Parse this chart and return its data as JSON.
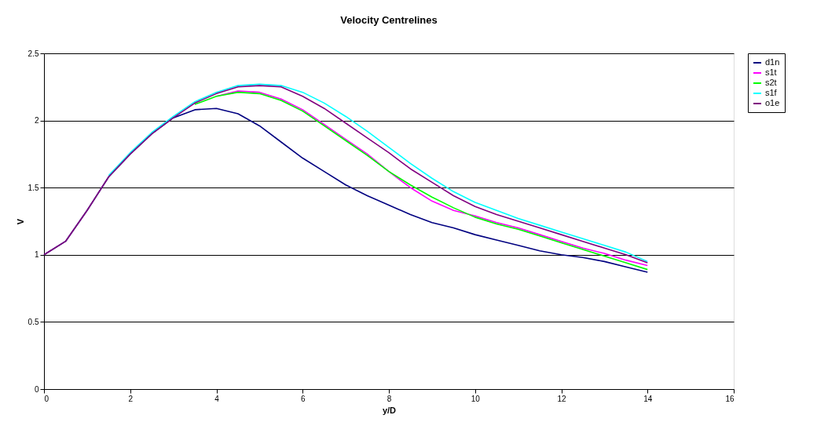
{
  "chart_data": {
    "type": "line",
    "title": "Velocity Centrelines",
    "xlabel": "y/D",
    "ylabel": "V",
    "x": [
      0,
      0.5,
      1,
      1.5,
      2,
      2.5,
      3,
      3.5,
      4,
      4.5,
      5,
      5.5,
      6,
      6.5,
      7,
      7.5,
      8,
      8.5,
      9,
      9.5,
      10,
      10.5,
      11,
      11.5,
      12,
      12.5,
      13,
      13.5,
      14
    ],
    "series": [
      {
        "name": "d1n",
        "color": "#000080",
        "values": [
          1.0,
          1.1,
          1.33,
          1.58,
          1.75,
          1.9,
          2.02,
          2.08,
          2.09,
          2.05,
          1.96,
          1.84,
          1.72,
          1.62,
          1.52,
          1.44,
          1.37,
          1.3,
          1.24,
          1.2,
          1.15,
          1.11,
          1.07,
          1.03,
          1.0,
          0.98,
          0.95,
          0.91,
          0.87
        ]
      },
      {
        "name": "s1t",
        "color": "#ff00ff",
        "values": [
          null,
          null,
          null,
          null,
          null,
          null,
          null,
          null,
          2.18,
          2.22,
          2.21,
          2.16,
          2.08,
          1.97,
          1.86,
          1.75,
          1.62,
          1.5,
          1.4,
          1.33,
          1.29,
          1.24,
          1.2,
          1.15,
          1.1,
          1.05,
          1.01,
          0.96,
          0.92
        ]
      },
      {
        "name": "s2t",
        "color": "#00ff00",
        "values": [
          null,
          null,
          null,
          null,
          null,
          null,
          null,
          2.12,
          2.18,
          2.21,
          2.2,
          2.15,
          2.07,
          1.96,
          1.85,
          1.74,
          1.62,
          1.52,
          1.43,
          1.35,
          1.28,
          1.23,
          1.19,
          1.14,
          1.09,
          1.04,
          0.99,
          0.94,
          0.89
        ]
      },
      {
        "name": "s1f",
        "color": "#00ffff",
        "values": [
          null,
          null,
          null,
          1.59,
          1.76,
          1.91,
          2.03,
          2.14,
          2.21,
          2.26,
          2.27,
          2.26,
          2.21,
          2.13,
          2.03,
          1.92,
          1.8,
          1.68,
          1.57,
          1.47,
          1.39,
          1.33,
          1.27,
          1.22,
          1.17,
          1.12,
          1.07,
          1.02,
          0.95
        ]
      },
      {
        "name": "o1e",
        "color": "#800080",
        "values": [
          1.0,
          1.1,
          1.33,
          1.58,
          1.75,
          1.9,
          2.02,
          2.13,
          2.2,
          2.25,
          2.26,
          2.25,
          2.18,
          2.09,
          1.98,
          1.87,
          1.76,
          1.64,
          1.54,
          1.44,
          1.36,
          1.3,
          1.25,
          1.2,
          1.15,
          1.1,
          1.05,
          1.0,
          0.94
        ]
      }
    ],
    "xlim": [
      0,
      16
    ],
    "xticks": [
      0,
      2,
      4,
      6,
      8,
      10,
      12,
      14,
      16
    ],
    "ylim": [
      0,
      2.5
    ],
    "yticks": [
      0,
      0.5,
      1,
      1.5,
      2,
      2.5
    ],
    "grid": "y",
    "legend": "right",
    "marker": "none",
    "line_style": "solid"
  }
}
